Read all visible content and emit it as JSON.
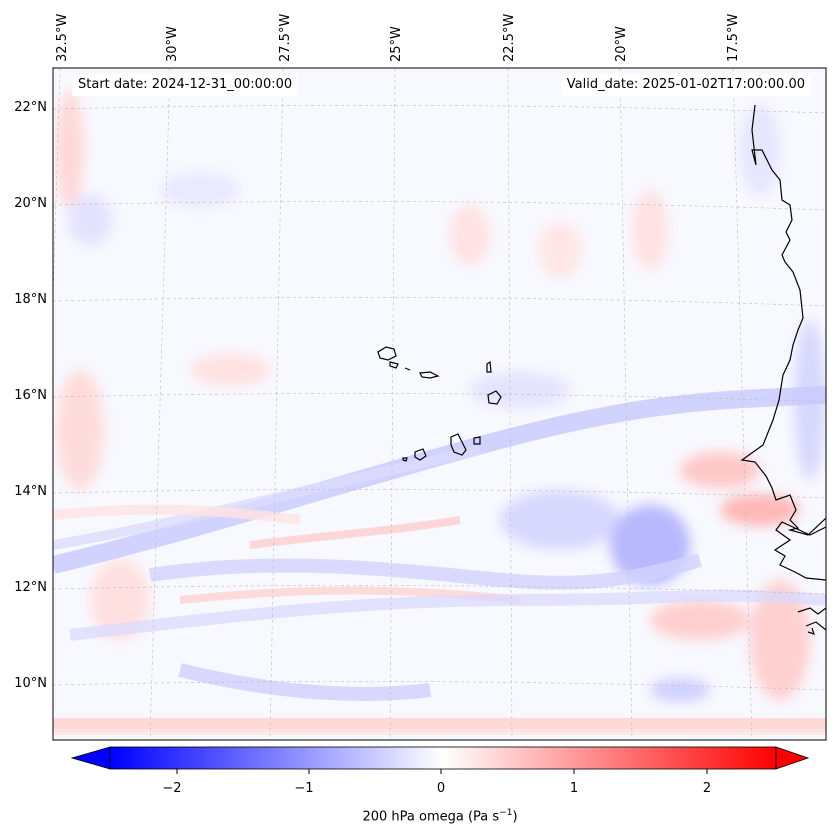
{
  "map": {
    "lon_labels": [
      "32.5°W",
      "30°W",
      "27.5°W",
      "25°W",
      "22.5°W",
      "20°W",
      "17.5°W"
    ],
    "lat_labels": [
      "22°N",
      "20°N",
      "18°N",
      "16°N",
      "14°N",
      "12°N",
      "10°N"
    ],
    "start_date": "Start date: 2024-12-31_00:00:00",
    "valid_date": "Valid_date: 2025-01-02T17:00:00.00"
  },
  "colorbar": {
    "tick_labels": [
      "−2",
      "−1",
      "0",
      "1",
      "2"
    ],
    "title": "200 hPa omega (Pa s",
    "title_sup": "−1",
    "title_end": ")",
    "min_color": "#0000ff",
    "max_color": "#ff0000"
  }
}
